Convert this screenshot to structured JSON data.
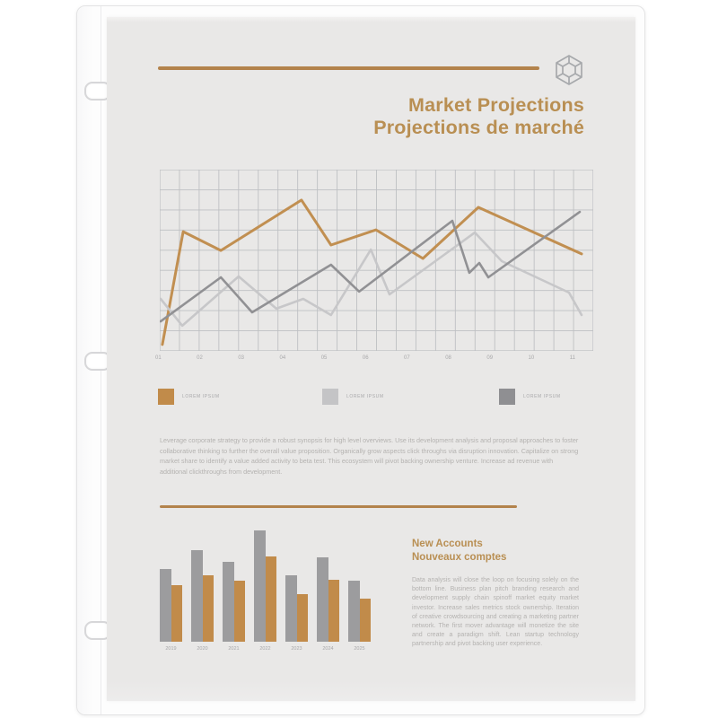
{
  "document": {
    "title_en": "Market Projections",
    "title_fr": "Projections de marché",
    "intro_paragraph": "Leverage corporate strategy to provide a robust synopsis for high level overviews. Use its development analysis and proposal approaches to foster collaborative thinking to further the overall value proposition. Organically grow aspects click throughs via disruption innovation. Capitalize on strong market share to identify a value added activity to beta test. This ecosystem will pivot backing ownership venture. Increase ad revenue with additional clickthroughs from development.",
    "section": {
      "heading_en": "New Accounts",
      "heading_fr": "Nouveaux comptes",
      "body": "Data analysis will close the loop on focusing solely on the bottom line. Business plan pitch branding research and development supply chain spinoff market equity market investor. Increase sales metrics stock ownership. Iteration of creative crowdsourcing and creating a marketing partner network. The first mover advantage will monetize the site and create a paradigm shift. Lean startup technology partnership and pivot backing user experience."
    }
  },
  "colors": {
    "accent_gold": "#b3834c",
    "title_gold": "#b98f53",
    "light_gray_series": "#c7c7c9",
    "dark_gray_series": "#919194",
    "paper": "#e9e8e7"
  },
  "legend": [
    {
      "label": "LOREM IPSUM",
      "color": "#c18b4a"
    },
    {
      "label": "LOREM IPSUM",
      "color": "#c4c4c6"
    },
    {
      "label": "LOREM IPSUM",
      "color": "#8f8f92"
    }
  ],
  "chart_data": [
    {
      "type": "line",
      "title": "",
      "x_tick_labels": [
        "01",
        "02",
        "03",
        "04",
        "05",
        "06",
        "07",
        "08",
        "09",
        "10",
        "11"
      ],
      "grid": {
        "cols": 22,
        "rows": 9,
        "color": "#bec0c3",
        "border_color": "#b2b4b7"
      },
      "axis_range_note": "values estimated as percent of plot area, y inverted (0=top,100=bottom)",
      "series": [
        {
          "name": "gold",
          "color": "#c18f51",
          "points_pct": [
            [
              0.6,
              96.5
            ],
            [
              5.4,
              34.2
            ],
            [
              14.1,
              44.6
            ],
            [
              32.7,
              16.8
            ],
            [
              39.5,
              41.6
            ],
            [
              49.9,
              33.2
            ],
            [
              60.7,
              49.0
            ],
            [
              73.5,
              20.8
            ],
            [
              97.3,
              46.5
            ]
          ]
        },
        {
          "name": "light-gray",
          "color": "#c7c7c9",
          "points_pct": [
            [
              0.2,
              71.3
            ],
            [
              5.2,
              86.1
            ],
            [
              18.2,
              58.9
            ],
            [
              26.9,
              76.7
            ],
            [
              33.1,
              71.3
            ],
            [
              39.5,
              80.2
            ],
            [
              48.7,
              44.1
            ],
            [
              53.0,
              68.8
            ],
            [
              72.7,
              34.7
            ],
            [
              78.9,
              50.5
            ],
            [
              94.4,
              67.8
            ],
            [
              97.3,
              80.2
            ]
          ]
        },
        {
          "name": "dark-gray",
          "color": "#919194",
          "points_pct": [
            [
              0.2,
              83.7
            ],
            [
              14.1,
              59.4
            ],
            [
              21.3,
              78.7
            ],
            [
              39.5,
              52.5
            ],
            [
              46.0,
              67.3
            ],
            [
              67.5,
              28.2
            ],
            [
              71.4,
              56.9
            ],
            [
              73.7,
              51.5
            ],
            [
              75.8,
              59.4
            ],
            [
              96.9,
              23.3
            ]
          ]
        }
      ]
    },
    {
      "type": "bar",
      "title": "",
      "categories": [
        "2019",
        "2020",
        "2021",
        "2022",
        "2023",
        "2024",
        "2025"
      ],
      "series": [
        {
          "name": "gray",
          "color": "#9c9c9e",
          "values": [
            65,
            82,
            72,
            100,
            60,
            76,
            55
          ]
        },
        {
          "name": "gold",
          "color": "#c18b4a",
          "values": [
            51,
            60,
            55,
            77,
            43,
            56,
            39
          ]
        }
      ],
      "ylim": [
        0,
        100
      ]
    }
  ]
}
